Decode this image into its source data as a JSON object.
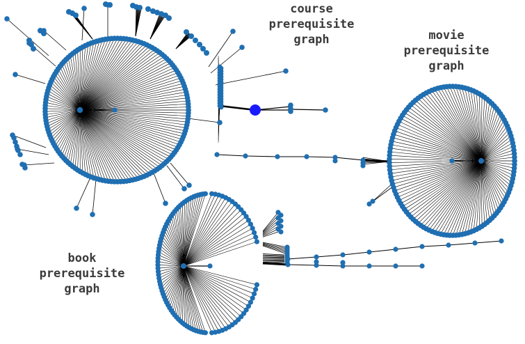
{
  "labels": {
    "course": [
      "course",
      "prerequisite",
      "graph"
    ],
    "movie": [
      "movie",
      "prerequisite",
      "graph"
    ],
    "book": [
      "book",
      "prerequisite",
      "graph"
    ]
  },
  "colors": {
    "node": "#1f6fb2",
    "highlight_node": "#1a1aff",
    "edge": "#000000",
    "label_text": "#3a3a3a",
    "background": "#ffffff"
  }
}
